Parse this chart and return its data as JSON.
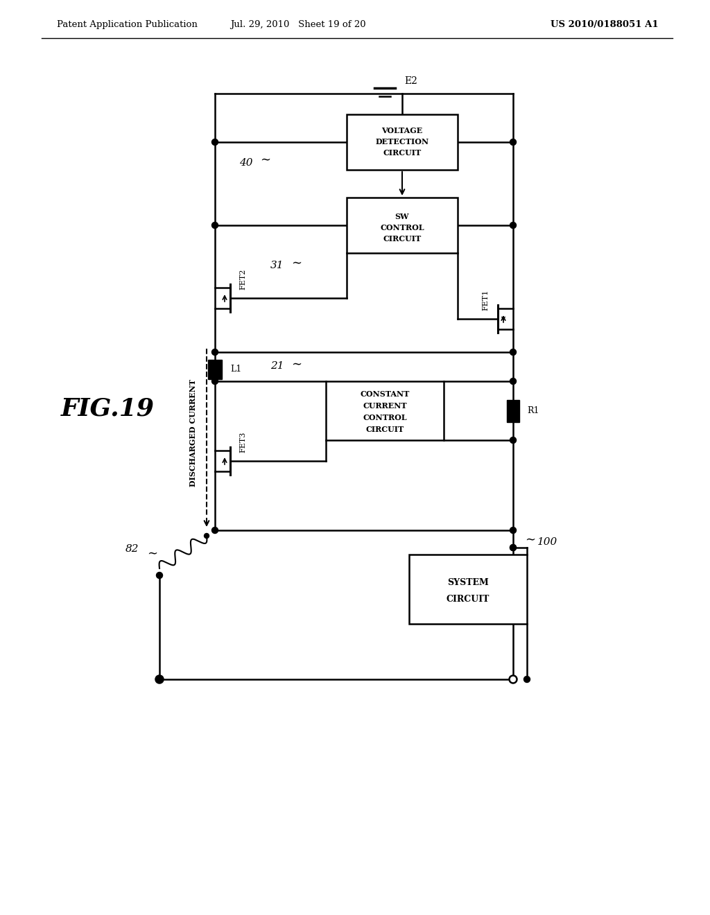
{
  "bg_color": "#ffffff",
  "header_left": "Patent Application Publication",
  "header_mid": "Jul. 29, 2010   Sheet 19 of 20",
  "header_right": "US 2010/0188051 A1",
  "fig_label": "FIG.19",
  "header_fontsize": 9.5
}
